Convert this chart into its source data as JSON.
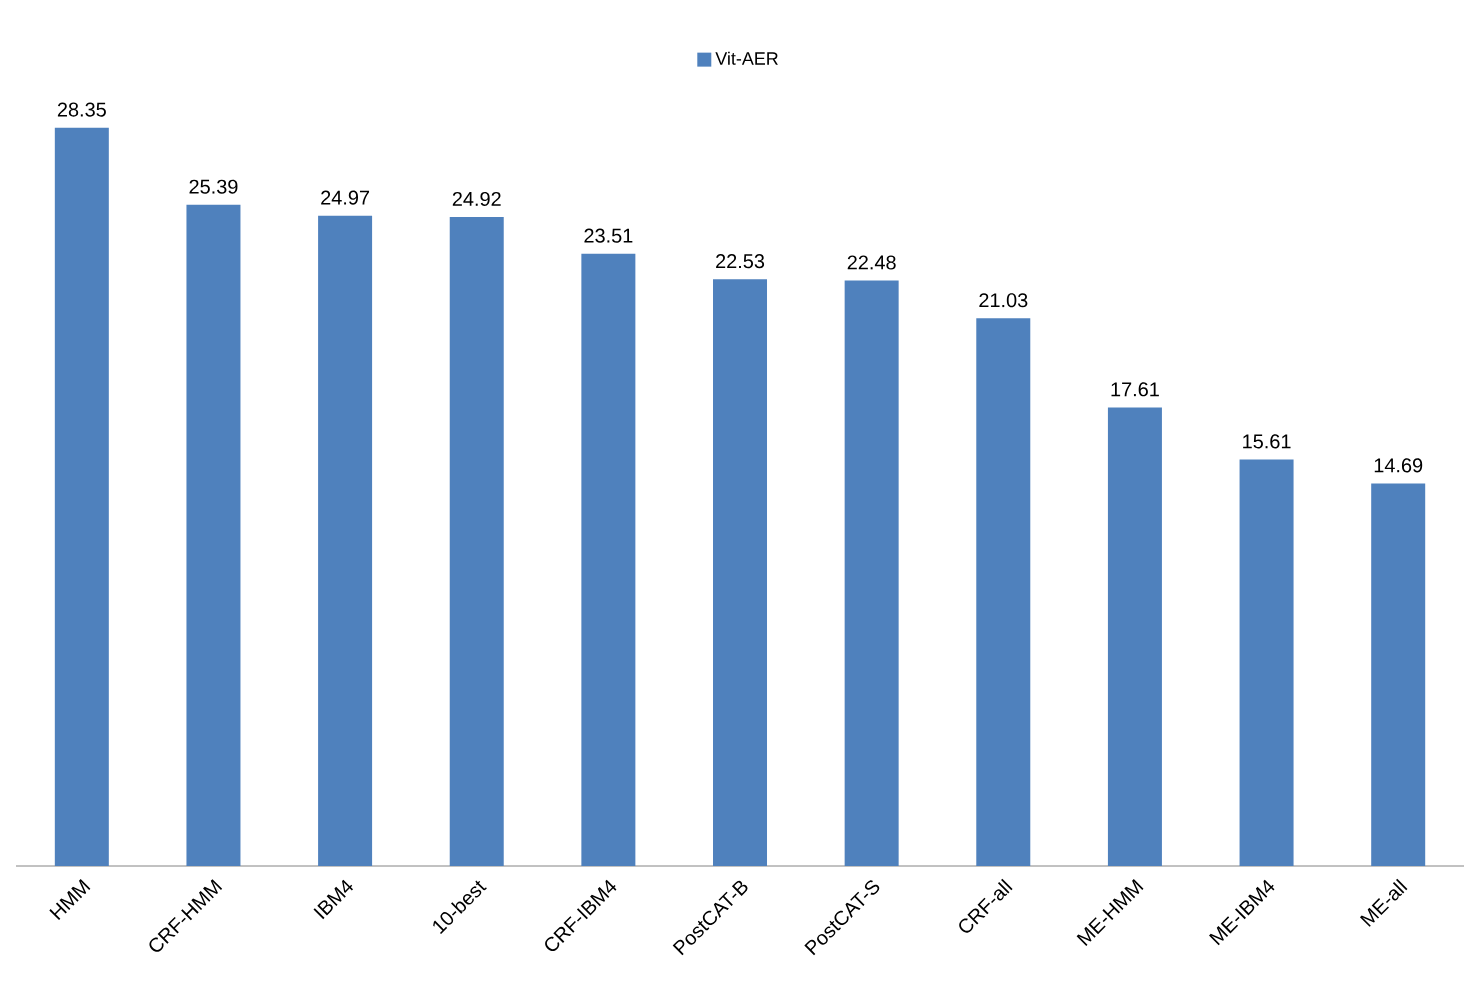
{
  "chart_data": {
    "type": "bar",
    "categories": [
      "HMM",
      "CRF-HMM",
      "IBM4",
      "10-best",
      "CRF-IBM4",
      "PostCAT-B",
      "PostCAT-S",
      "CRF-all",
      "ME-HMM",
      "ME-IBM4",
      "ME-all"
    ],
    "series": [
      {
        "name": "Vit-AER",
        "color": "#4f81bd",
        "values": [
          28.35,
          25.39,
          24.97,
          24.92,
          23.51,
          22.53,
          22.48,
          21.03,
          17.61,
          15.61,
          14.69
        ]
      }
    ],
    "data_labels": true,
    "legend": "top"
  }
}
